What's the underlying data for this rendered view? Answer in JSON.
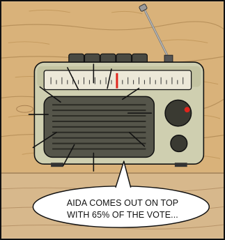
{
  "panel": {
    "speech_bubble": {
      "lines": [
        "AIDA COMES OUT ON TOP",
        "WITH 65% OF THE VOTE..."
      ]
    }
  },
  "colors": {
    "wall_wood": "#d9b27a",
    "wall_shadow": "#c49a5e",
    "table_wood": "#d7b88c",
    "radio_body": "#cfcfb0",
    "radio_front": "#8a8a70",
    "speaker_dark": "#55554a",
    "dial_window": "#ece8d8",
    "dial_needle": "#e0241c",
    "knob_dark": "#3a3a32",
    "knob_indicator": "#e0241c",
    "outline": "#111111",
    "bubble_fill": "#ffffff"
  }
}
